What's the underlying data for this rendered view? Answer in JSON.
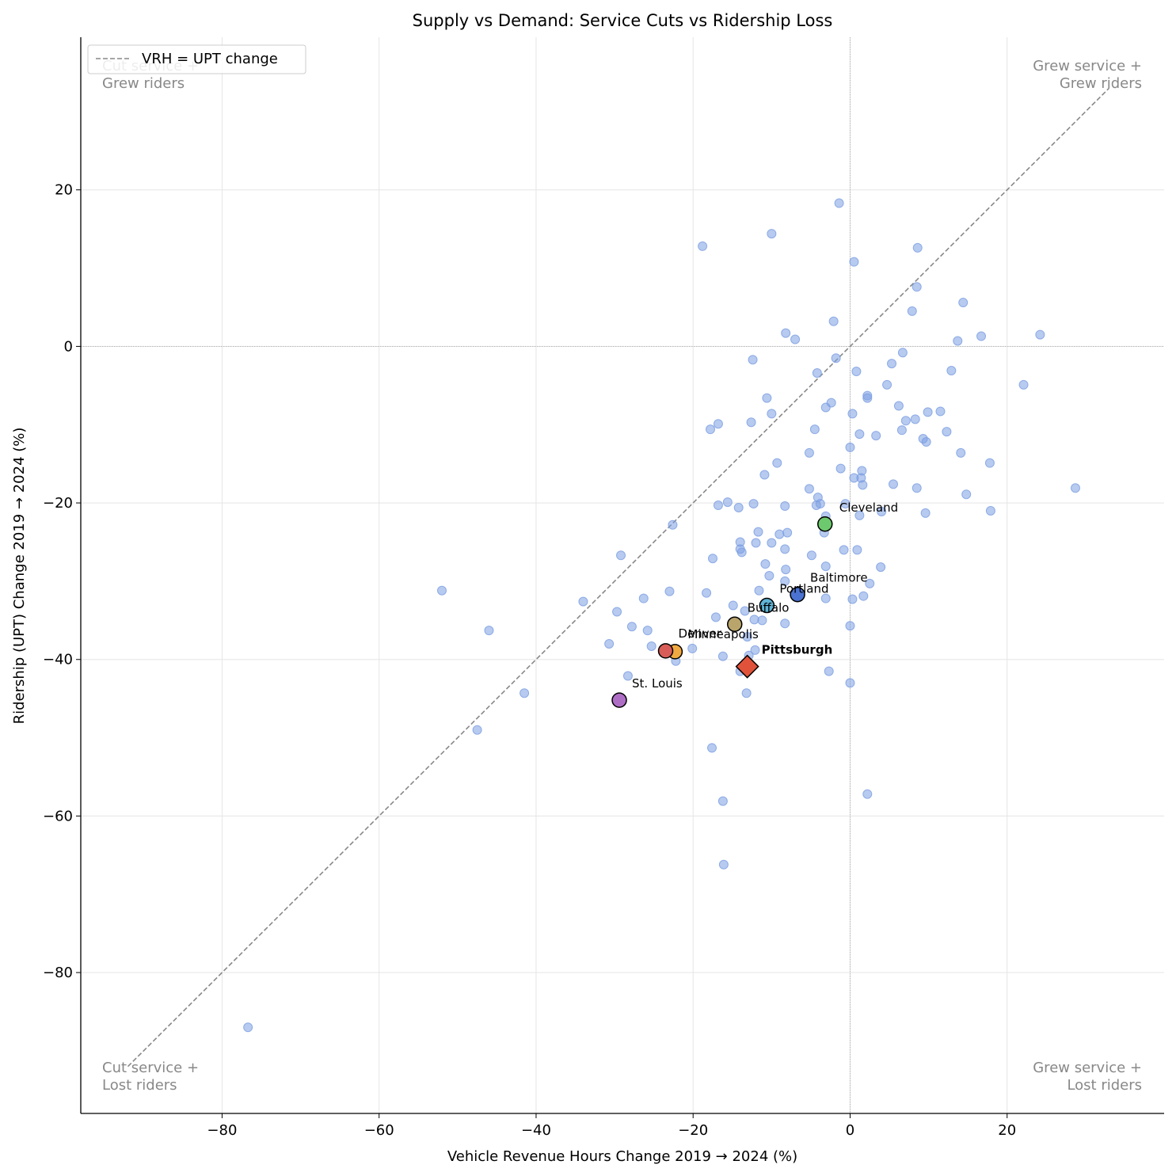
{
  "chart_data": {
    "type": "scatter",
    "title": "Supply vs Demand: Service Cuts vs Ridership Loss",
    "xlabel": "Vehicle Revenue Hours Change 2019 → 2024 (%)",
    "ylabel": "Ridership (UPT) Change 2019 → 2024 (%)",
    "xlim": [
      -98,
      40
    ],
    "ylim": [
      -98,
      39.5
    ],
    "xticks": [
      -80,
      -60,
      -40,
      -20,
      0,
      20
    ],
    "yticks": [
      -80,
      -60,
      -40,
      -20,
      0,
      20
    ],
    "xtick_labels": [
      "−80",
      "−60",
      "−40",
      "−20",
      "0",
      "20"
    ],
    "ytick_labels": [
      "−80",
      "−60",
      "−40",
      "−20",
      "0",
      "20"
    ],
    "grid": true,
    "legend": {
      "placement": "top-left",
      "entries": [
        "VRH = UPT change"
      ]
    },
    "reference_line": {
      "label": "VRH = UPT change",
      "from": [
        -92,
        -92
      ],
      "to": [
        33,
        33
      ]
    },
    "quadrant_labels": {
      "top_left": [
        "Cut service +",
        "Grew riders"
      ],
      "top_right": [
        "Grew service +",
        "Grew riders"
      ],
      "bottom_left": [
        "Cut service +",
        "Lost riders"
      ],
      "bottom_right": [
        "Grew service +",
        "Lost riders"
      ]
    },
    "colors": {
      "background_points": "#7b9ee2",
      "reference_line": "#888888",
      "grid": "#e5e5e5"
    },
    "series": [
      {
        "marker": "circle",
        "points": [
          [
            -1.4,
            18.3
          ],
          [
            -10,
            14.4
          ],
          [
            -18.8,
            12.8
          ],
          [
            8.6,
            12.6
          ],
          [
            0.5,
            10.8
          ],
          [
            8.5,
            7.6
          ],
          [
            14.4,
            5.6
          ],
          [
            7.9,
            4.5
          ],
          [
            -2.1,
            3.2
          ],
          [
            -8.2,
            1.7
          ],
          [
            -7,
            0.9
          ],
          [
            24.2,
            1.5
          ],
          [
            16.7,
            1.3
          ],
          [
            13.7,
            0.7
          ],
          [
            6.7,
            -0.8
          ],
          [
            -12.4,
            -1.7
          ],
          [
            -1.8,
            -1.5
          ],
          [
            5.3,
            -2.2
          ],
          [
            0.8,
            -3.2
          ],
          [
            12.9,
            -3.1
          ],
          [
            -4.2,
            -3.4
          ],
          [
            4.7,
            -4.9
          ],
          [
            22.1,
            -4.9
          ],
          [
            2.2,
            -6.3
          ],
          [
            2.2,
            -6.6
          ],
          [
            -10.6,
            -6.6
          ],
          [
            -2.4,
            -7.2
          ],
          [
            6.2,
            -7.6
          ],
          [
            -3.1,
            -7.8
          ],
          [
            9.9,
            -8.4
          ],
          [
            11.5,
            -8.3
          ],
          [
            -10,
            -8.6
          ],
          [
            0.3,
            -8.6
          ],
          [
            8.3,
            -9.3
          ],
          [
            7.1,
            -9.5
          ],
          [
            -12.6,
            -9.7
          ],
          [
            -16.8,
            -9.9
          ],
          [
            -17.8,
            -10.6
          ],
          [
            -4.5,
            -10.6
          ],
          [
            6.6,
            -10.7
          ],
          [
            12.3,
            -10.9
          ],
          [
            1.2,
            -11.2
          ],
          [
            3.3,
            -11.4
          ],
          [
            9.3,
            -11.8
          ],
          [
            9.7,
            -12.2
          ],
          [
            0,
            -12.9
          ],
          [
            14.1,
            -13.6
          ],
          [
            -5.2,
            -13.6
          ],
          [
            -9.3,
            -14.9
          ],
          [
            17.8,
            -14.9
          ],
          [
            -1.2,
            -15.6
          ],
          [
            1.5,
            -15.9
          ],
          [
            0.5,
            -16.8
          ],
          [
            1.4,
            -16.8
          ],
          [
            -10.9,
            -16.4
          ],
          [
            5.5,
            -17.6
          ],
          [
            1.6,
            -17.7
          ],
          [
            8.5,
            -18.1
          ],
          [
            28.7,
            -18.1
          ],
          [
            -5.2,
            -18.2
          ],
          [
            14.8,
            -18.9
          ],
          [
            -4.1,
            -19.3
          ],
          [
            -15.6,
            -19.9
          ],
          [
            -12.3,
            -20.1
          ],
          [
            -3.8,
            -20.1
          ],
          [
            -0.6,
            -20.1
          ],
          [
            -16.8,
            -20.3
          ],
          [
            -8.3,
            -20.4
          ],
          [
            -4.3,
            -20.3
          ],
          [
            -14.2,
            -20.6
          ],
          [
            17.9,
            -21
          ],
          [
            4,
            -21.1
          ],
          [
            9.6,
            -21.3
          ],
          [
            1.2,
            -21.6
          ],
          [
            -3.1,
            -21.7
          ],
          [
            -22.6,
            -22.8
          ],
          [
            -11.7,
            -23.7
          ],
          [
            -3.3,
            -23.8
          ],
          [
            -8,
            -23.8
          ],
          [
            -9,
            -24
          ],
          [
            -12,
            -25.1
          ],
          [
            -14,
            -25
          ],
          [
            -10,
            -25.1
          ],
          [
            -14,
            -25.9
          ],
          [
            -8.3,
            -25.9
          ],
          [
            -0.8,
            -26
          ],
          [
            0.9,
            -26
          ],
          [
            -13.8,
            -26.3
          ],
          [
            -29.2,
            -26.7
          ],
          [
            -4.9,
            -26.7
          ],
          [
            -17.5,
            -27.1
          ],
          [
            -10.8,
            -27.8
          ],
          [
            -3.1,
            -28.1
          ],
          [
            3.9,
            -28.2
          ],
          [
            -8.2,
            -28.5
          ],
          [
            -10.3,
            -29.3
          ],
          [
            -8.3,
            -30
          ],
          [
            2.5,
            -30.3
          ],
          [
            -23,
            -31.3
          ],
          [
            -11.6,
            -31.2
          ],
          [
            -18.3,
            -31.5
          ],
          [
            -52,
            -31.2
          ],
          [
            1.7,
            -31.9
          ],
          [
            0.3,
            -32.3
          ],
          [
            -3.1,
            -32.2
          ],
          [
            -26.3,
            -32.2
          ],
          [
            -34,
            -32.6
          ],
          [
            -14.9,
            -33.1
          ],
          [
            -13.4,
            -33.8
          ],
          [
            -29.7,
            -33.9
          ],
          [
            -17.1,
            -34.6
          ],
          [
            -12.2,
            -34.9
          ],
          [
            -11.2,
            -35
          ],
          [
            -8.3,
            -35.4
          ],
          [
            -27.8,
            -35.8
          ],
          [
            0,
            -35.7
          ],
          [
            -46,
            -36.3
          ],
          [
            -25.8,
            -36.3
          ],
          [
            -13.1,
            -37.1
          ],
          [
            -30.7,
            -38
          ],
          [
            -25.3,
            -38.3
          ],
          [
            -20.1,
            -38.6
          ],
          [
            -12.1,
            -38.8
          ],
          [
            -12.9,
            -39.5
          ],
          [
            -16.2,
            -39.6
          ],
          [
            -22.2,
            -40.2
          ],
          [
            -14,
            -41.5
          ],
          [
            -2.7,
            -41.5
          ],
          [
            -28.3,
            -42.1
          ],
          [
            0,
            -43
          ],
          [
            -13.2,
            -44.3
          ],
          [
            -41.5,
            -44.3
          ],
          [
            -47.5,
            -49
          ],
          [
            -17.6,
            -51.3
          ],
          [
            2.2,
            -57.2
          ],
          [
            -16.2,
            -58.1
          ],
          [
            -16.1,
            -66.2
          ],
          [
            -76.7,
            -87
          ]
        ]
      }
    ],
    "highlighted": [
      {
        "name": "Cleveland",
        "x": -3.2,
        "y": -22.7,
        "color": "#6dc96d",
        "marker": "circle"
      },
      {
        "name": "Baltimore",
        "x": -6.7,
        "y": -31.7,
        "color": "#4a72d1",
        "marker": "circle"
      },
      {
        "name": "Portland",
        "x": -10.6,
        "y": -33.1,
        "color": "#5fb4d6",
        "marker": "circle"
      },
      {
        "name": "Buffalo",
        "x": -14.7,
        "y": -35.5,
        "color": "#b9a46b",
        "marker": "circle"
      },
      {
        "name": "Minneapolis",
        "x": -22.3,
        "y": -39,
        "color": "#f0a940",
        "marker": "circle"
      },
      {
        "name": "Denver",
        "x": -23.5,
        "y": -38.9,
        "color": "#d85c57",
        "marker": "circle"
      },
      {
        "name": "Pittsburgh",
        "x": -13.1,
        "y": -40.9,
        "color": "#e0533a",
        "marker": "diamond",
        "bold": true
      },
      {
        "name": "St. Louis",
        "x": -29.4,
        "y": -45.2,
        "color": "#ae6ec5",
        "marker": "circle"
      }
    ]
  }
}
